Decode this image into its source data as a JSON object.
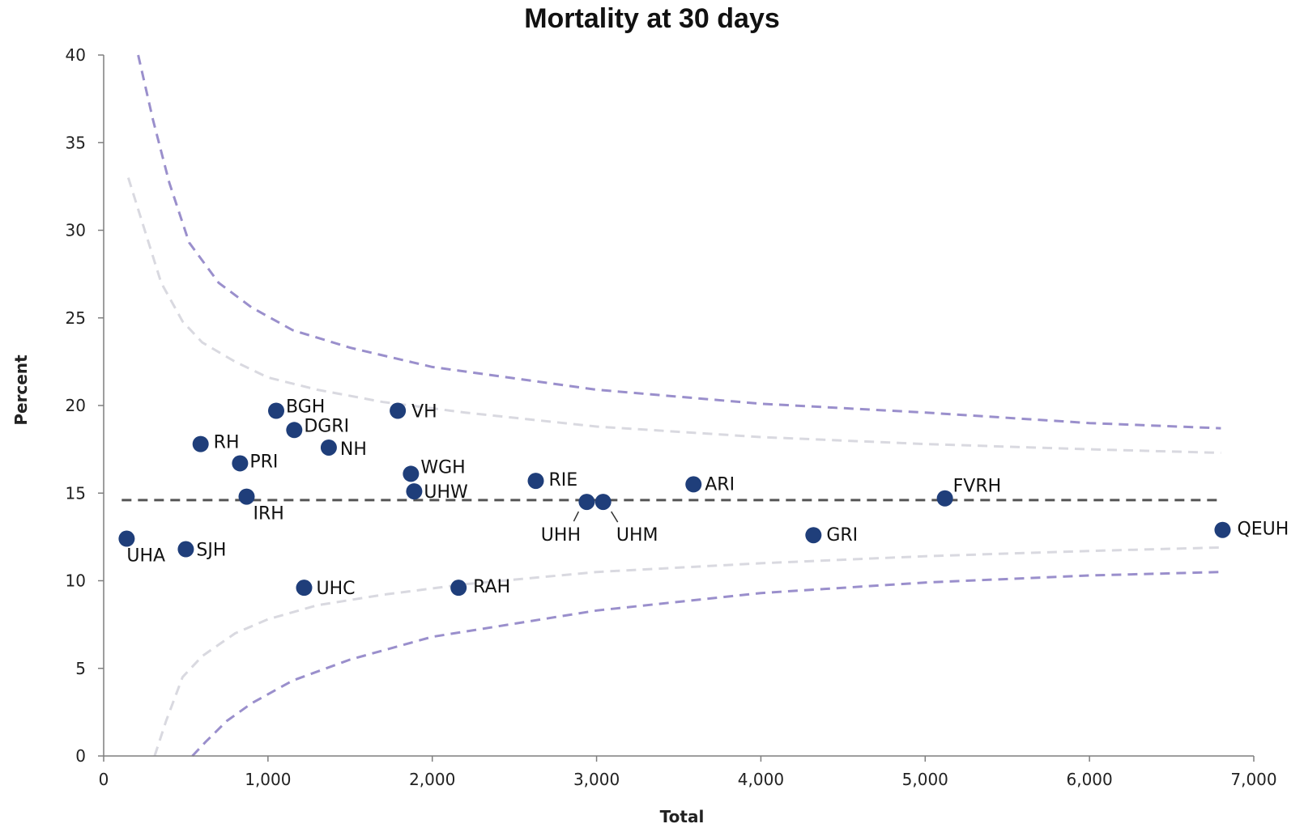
{
  "chart_data": {
    "type": "scatter",
    "title": "Mortality  at 30 days",
    "xlabel": "Total",
    "ylabel": "Percent",
    "xlim": [
      0,
      7000
    ],
    "ylim": [
      0,
      40
    ],
    "x_ticks": [
      0,
      1000,
      2000,
      3000,
      4000,
      5000,
      6000,
      7000
    ],
    "x_tick_labels": [
      "0",
      "1,000",
      "2,000",
      "3,000",
      "4,000",
      "5,000",
      "6,000",
      "7,000"
    ],
    "y_ticks": [
      0,
      5,
      10,
      15,
      20,
      25,
      30,
      35,
      40
    ],
    "y_tick_labels": [
      "0",
      "5",
      "10",
      "15",
      "20",
      "25",
      "30",
      "35",
      "40"
    ],
    "grid": false,
    "legend": "none",
    "point_color": "#1f3e7a",
    "mean_line": {
      "y": 14.6,
      "color": "#555555"
    },
    "limits_outer": {
      "color": "#9a8fcc",
      "upper": {
        "x": [
          210,
          300,
          400,
          520,
          700,
          900,
          1150,
          1500,
          2000,
          3000,
          4000,
          5000,
          6000,
          6800
        ],
        "y": [
          40,
          36.3,
          32.7,
          29.3,
          27.0,
          25.6,
          24.3,
          23.3,
          22.2,
          20.9,
          20.1,
          19.6,
          19.0,
          18.7
        ]
      },
      "lower": {
        "x": [
          540,
          620,
          750,
          900,
          1150,
          1500,
          2000,
          3000,
          4000,
          5000,
          6000,
          6800
        ],
        "y": [
          0,
          0.8,
          2.0,
          3.0,
          4.3,
          5.5,
          6.8,
          8.3,
          9.3,
          9.9,
          10.3,
          10.5
        ]
      }
    },
    "limits_inner": {
      "color": "#d9d9e0",
      "upper": {
        "x": [
          150,
          250,
          350,
          480,
          600,
          800,
          1000,
          1300,
          1700,
          2200,
          3000,
          4000,
          5000,
          6000,
          6800
        ],
        "y": [
          33.0,
          30.0,
          27.0,
          24.8,
          23.6,
          22.5,
          21.6,
          20.9,
          20.2,
          19.6,
          18.8,
          18.2,
          17.8,
          17.5,
          17.3
        ]
      },
      "lower": {
        "x": [
          310,
          380,
          480,
          600,
          800,
          1000,
          1300,
          1700,
          2200,
          3000,
          4000,
          5000,
          6000,
          6800
        ],
        "y": [
          0,
          2.0,
          4.5,
          5.7,
          7.0,
          7.8,
          8.6,
          9.2,
          9.8,
          10.5,
          11.0,
          11.4,
          11.7,
          11.9
        ]
      }
    },
    "points": [
      {
        "label": "UHA",
        "x": 140,
        "y": 12.4
      },
      {
        "label": "SJH",
        "x": 500,
        "y": 11.8
      },
      {
        "label": "RH",
        "x": 590,
        "y": 17.8
      },
      {
        "label": "PRI",
        "x": 830,
        "y": 16.7
      },
      {
        "label": "IRH",
        "x": 870,
        "y": 14.8
      },
      {
        "label": "BGH",
        "x": 1050,
        "y": 19.7
      },
      {
        "label": "DGRI",
        "x": 1160,
        "y": 18.6
      },
      {
        "label": "UHC",
        "x": 1220,
        "y": 9.6
      },
      {
        "label": "NH",
        "x": 1370,
        "y": 17.6
      },
      {
        "label": "VH",
        "x": 1790,
        "y": 19.7
      },
      {
        "label": "WGH",
        "x": 1870,
        "y": 16.1
      },
      {
        "label": "UHW",
        "x": 1890,
        "y": 15.1
      },
      {
        "label": "RAH",
        "x": 2160,
        "y": 9.6
      },
      {
        "label": "RIE",
        "x": 2630,
        "y": 15.7
      },
      {
        "label": "UHH",
        "x": 2940,
        "y": 14.5
      },
      {
        "label": "UHM",
        "x": 3040,
        "y": 14.5
      },
      {
        "label": "ARI",
        "x": 3590,
        "y": 15.5
      },
      {
        "label": "GRI",
        "x": 4320,
        "y": 12.6
      },
      {
        "label": "FVRH",
        "x": 5120,
        "y": 14.7
      },
      {
        "label": "QEUH",
        "x": 6810,
        "y": 12.9
      }
    ]
  }
}
